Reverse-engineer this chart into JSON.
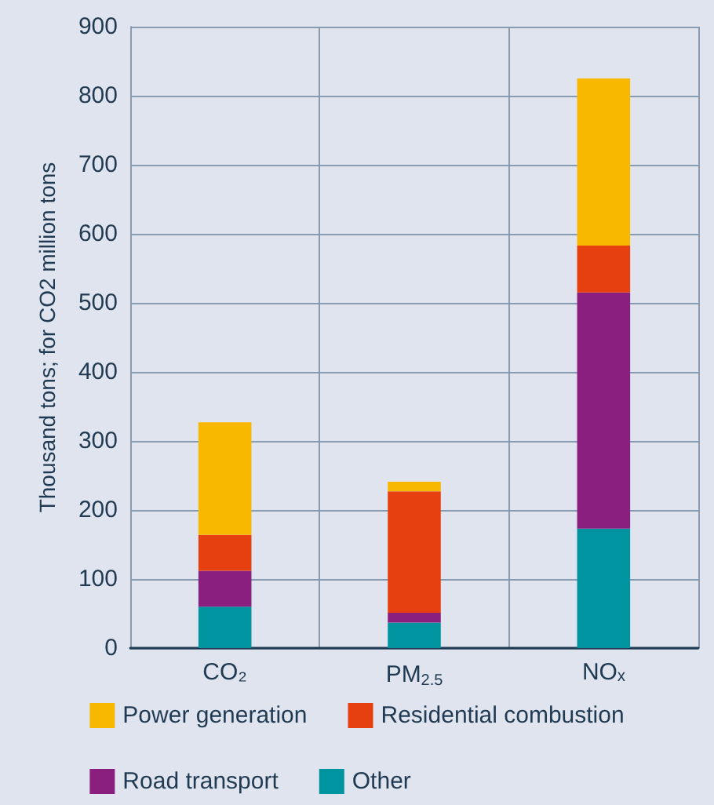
{
  "chart_data": {
    "type": "bar",
    "stacked": true,
    "ylabel": "Thousand tons; for CO2 million tons",
    "categories": [
      "CO₂",
      "PM$_{2.5}$",
      "NOₓ"
    ],
    "series": [
      {
        "name": "Other",
        "color": "#0093a0",
        "values": [
          60,
          37,
          173
        ]
      },
      {
        "name": "Road transport",
        "color": "#8b1f80",
        "values": [
          52,
          14,
          342
        ]
      },
      {
        "name": "Residential combustion",
        "color": "#e64011",
        "values": [
          52,
          176,
          68
        ]
      },
      {
        "name": "Power generation",
        "color": "#f9b800",
        "values": [
          163,
          14,
          242
        ]
      }
    ],
    "ylim": [
      0,
      900
    ],
    "yticks": [
      0,
      100,
      200,
      300,
      400,
      500,
      600,
      700,
      800,
      900
    ],
    "grid": true,
    "legend": "bottom"
  }
}
